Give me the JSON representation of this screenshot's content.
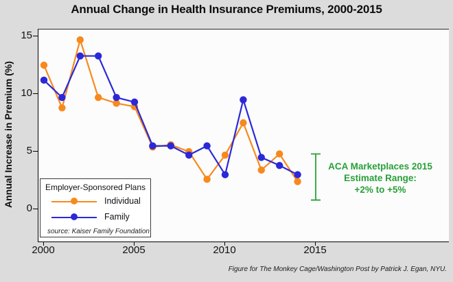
{
  "title": "Annual Change in Health Insurance Premiums, 2000-2015",
  "y_axis": {
    "label": "Annual Increase in Premium (%)",
    "ticks": [
      "15",
      "10",
      "5",
      "0"
    ]
  },
  "x_axis": {
    "ticks": [
      "2000",
      "2005",
      "2010",
      "2015"
    ]
  },
  "legend": {
    "title": "Employer-Sponsored Plans",
    "items": [
      {
        "label": "Individual",
        "color": "#F8891C"
      },
      {
        "label": "Family",
        "color": "#2B28D9"
      }
    ],
    "source": "source: Kaiser Family Foundation"
  },
  "annotation": {
    "lines": [
      "ACA Marketplaces 2015",
      "Estimate Range:",
      "+2% to +5%"
    ],
    "color": "#28A037"
  },
  "caption": "Figure for The Monkey Cage/Washington Post by Patrick J. Egan, NYU.",
  "colors": {
    "background": "#DCDCDC",
    "plot_background": "#FCFCFC",
    "individual": "#F8891C",
    "family": "#2B28D9",
    "annotation_green": "#28A037"
  },
  "chart_data": {
    "type": "line",
    "title": "Annual Change in Health Insurance Premiums, 2000-2015",
    "xlabel": "",
    "ylabel": "Annual Increase in Premium (%)",
    "x": [
      2000,
      2001,
      2002,
      2003,
      2004,
      2005,
      2006,
      2007,
      2008,
      2009,
      2010,
      2011,
      2012,
      2013,
      2014
    ],
    "series": [
      {
        "name": "Individual",
        "color": "#F8891C",
        "values": [
          12.5,
          8.8,
          14.7,
          9.7,
          9.2,
          8.9,
          5.4,
          5.6,
          5.0,
          2.6,
          4.7,
          7.5,
          3.4,
          4.8,
          2.4
        ]
      },
      {
        "name": "Family",
        "color": "#2B28D9",
        "values": [
          11.2,
          9.7,
          13.3,
          13.3,
          9.7,
          9.3,
          5.5,
          5.5,
          4.7,
          5.5,
          3.0,
          9.5,
          4.5,
          3.8,
          3.0
        ]
      }
    ],
    "x_ticks": [
      2000,
      2005,
      2010,
      2015
    ],
    "y_ticks": [
      0,
      5,
      10,
      15
    ],
    "xlim": [
      1999.7,
      2022.3
    ],
    "ylim": [
      -2.8,
      15.6
    ],
    "grid": false,
    "legend_position": "inside-bottom-left",
    "annotation": {
      "text": "ACA Marketplaces 2015 Estimate Range: +2% to +5%",
      "bracket_x": 2015,
      "bracket_y": [
        0.8,
        4.8
      ]
    }
  }
}
